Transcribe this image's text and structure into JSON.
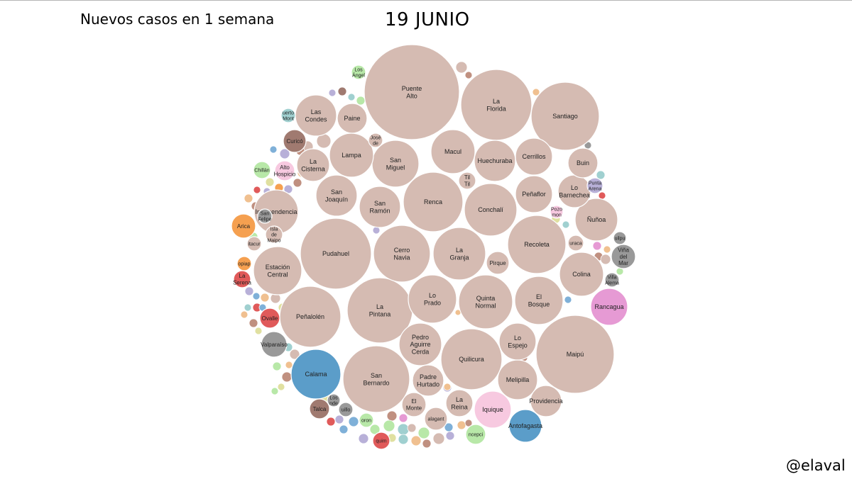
{
  "header": {
    "subtitle": "Nuevos casos en 1 semana",
    "title": "19 JUNIO"
  },
  "footer": {
    "credit": "@elaval"
  },
  "colors": {
    "santiago_region": "#d5bbb2",
    "tarapaca_antofagasta": "#5b9dc9",
    "arica": "#f5a050",
    "coquimbo": "#e05a5a",
    "valparaiso": "#999999",
    "ohiggins": "#e69ad4",
    "maule": "#a07a70",
    "biobio": "#b8e8a8",
    "tarapaca_light": "#f7c9e0",
    "misc": [
      "#b8b0d8",
      "#7fb0d8",
      "#f0c090",
      "#c09080",
      "#e0e0a0",
      "#a0d0d0"
    ]
  },
  "chart_data": {
    "type": "bubble",
    "title": "19 JUNIO",
    "subtitle": "Nuevos casos en 1 semana",
    "series": [
      {
        "label": "Puente Alto",
        "color": "santiago_region"
      },
      {
        "label": "La Florida",
        "color": "santiago_region"
      },
      {
        "label": "Santiago",
        "color": "santiago_region"
      },
      {
        "label": "Maipú",
        "color": "santiago_region"
      },
      {
        "label": "Pudahuel",
        "color": "santiago_region"
      },
      {
        "label": "La Pintana",
        "color": "santiago_region"
      },
      {
        "label": "San Bernardo",
        "color": "santiago_region"
      },
      {
        "label": "Renca",
        "color": "santiago_region"
      },
      {
        "label": "Peñalolén",
        "color": "santiago_region"
      },
      {
        "label": "Quilicura",
        "color": "santiago_region"
      },
      {
        "label": "Cerro Navia",
        "color": "santiago_region"
      },
      {
        "label": "Recoleta",
        "color": "santiago_region"
      },
      {
        "label": "Quinta Normal",
        "color": "santiago_region"
      },
      {
        "label": "Conchalí",
        "color": "santiago_region"
      },
      {
        "label": "La Granja",
        "color": "santiago_region"
      },
      {
        "label": "Estación Central",
        "color": "santiago_region"
      },
      {
        "label": "El Bosque",
        "color": "santiago_region"
      },
      {
        "label": "Lo Prado",
        "color": "santiago_region"
      },
      {
        "label": "Pedro Aguirre Cerda",
        "color": "santiago_region"
      },
      {
        "label": "Independencia",
        "color": "santiago_region"
      },
      {
        "label": "San Miguel",
        "color": "santiago_region"
      },
      {
        "label": "Macul",
        "color": "santiago_region"
      },
      {
        "label": "Colina",
        "color": "santiago_region"
      },
      {
        "label": "Lampa",
        "color": "santiago_region"
      },
      {
        "label": "San Ramón",
        "color": "santiago_region"
      },
      {
        "label": "Huechuraba",
        "color": "santiago_region"
      },
      {
        "label": "Ñuñoa",
        "color": "santiago_region"
      },
      {
        "label": "Las Condes",
        "color": "santiago_region"
      },
      {
        "label": "Melipilla",
        "color": "santiago_region"
      },
      {
        "label": "San Joaquín",
        "color": "santiago_region"
      },
      {
        "label": "Cerrillos",
        "color": "santiago_region"
      },
      {
        "label": "Lo Espejo",
        "color": "santiago_region"
      },
      {
        "label": "Peñaflor",
        "color": "santiago_region"
      },
      {
        "label": "Lo Barnechea",
        "color": "santiago_region"
      },
      {
        "label": "Padre Hurtado",
        "color": "santiago_region"
      },
      {
        "label": "Providencia",
        "color": "santiago_region"
      },
      {
        "label": "Paine",
        "color": "santiago_region"
      },
      {
        "label": "La Cisterna",
        "color": "santiago_region"
      },
      {
        "label": "La Reina",
        "color": "santiago_region"
      },
      {
        "label": "Buin",
        "color": "santiago_region"
      },
      {
        "label": "El Monte",
        "color": "santiago_region"
      },
      {
        "label": "Pirque",
        "color": "santiago_region"
      },
      {
        "label": "Til Til",
        "color": "santiago_region"
      },
      {
        "label": "Calama",
        "color": "tarapaca_antofagasta"
      },
      {
        "label": "Rancagua",
        "color": "ohiggins"
      },
      {
        "label": "Iquique",
        "color": "tarapaca_light"
      },
      {
        "label": "Antofagasta",
        "color": "tarapaca_antofagasta"
      },
      {
        "label": "Valparaíso",
        "color": "valparaiso"
      },
      {
        "label": "Viña del Mar",
        "color": "valparaiso"
      },
      {
        "label": "Arica",
        "color": "arica"
      },
      {
        "label": "Curicó",
        "color": "maule"
      },
      {
        "label": "Talca",
        "color": "maule"
      },
      {
        "label": "Ovalle",
        "color": "coquimbo"
      },
      {
        "label": "La Serena",
        "color": "coquimbo"
      },
      {
        "label": "Alto Hospicio",
        "color": "tarapaca_light"
      },
      {
        "label": "Concepción",
        "color": "biobio"
      },
      {
        "label": "Coquimbo",
        "color": "coquimbo"
      },
      {
        "label": "Chillán",
        "color": "biobio"
      },
      {
        "label": "Copiapó",
        "color": "arica"
      },
      {
        "label": "Talagante",
        "color": "santiago_region"
      },
      {
        "label": "San Felipe",
        "color": "valparaiso"
      },
      {
        "label": "Isla de Maipo",
        "color": "santiago_region"
      },
      {
        "label": "Los Ángeles",
        "color": "biobio"
      },
      {
        "label": "San José de Maipo",
        "color": "santiago_region"
      },
      {
        "label": "Curacaví",
        "color": "santiago_region"
      },
      {
        "label": "Puerto Montt",
        "color": "misc"
      },
      {
        "label": "Punta Arenas",
        "color": "misc"
      },
      {
        "label": "Quilpué",
        "color": "valparaiso"
      },
      {
        "label": "Villa Alemana",
        "color": "valparaiso"
      },
      {
        "label": "Pozo Almonte",
        "color": "tarapaca_light"
      },
      {
        "label": "Los Andes",
        "color": "valparaiso"
      },
      {
        "label": "Quillota",
        "color": "valparaiso"
      },
      {
        "label": "Coronel",
        "color": "biobio"
      },
      {
        "label": "Estación Central",
        "color": "santiago_region"
      }
    ]
  }
}
